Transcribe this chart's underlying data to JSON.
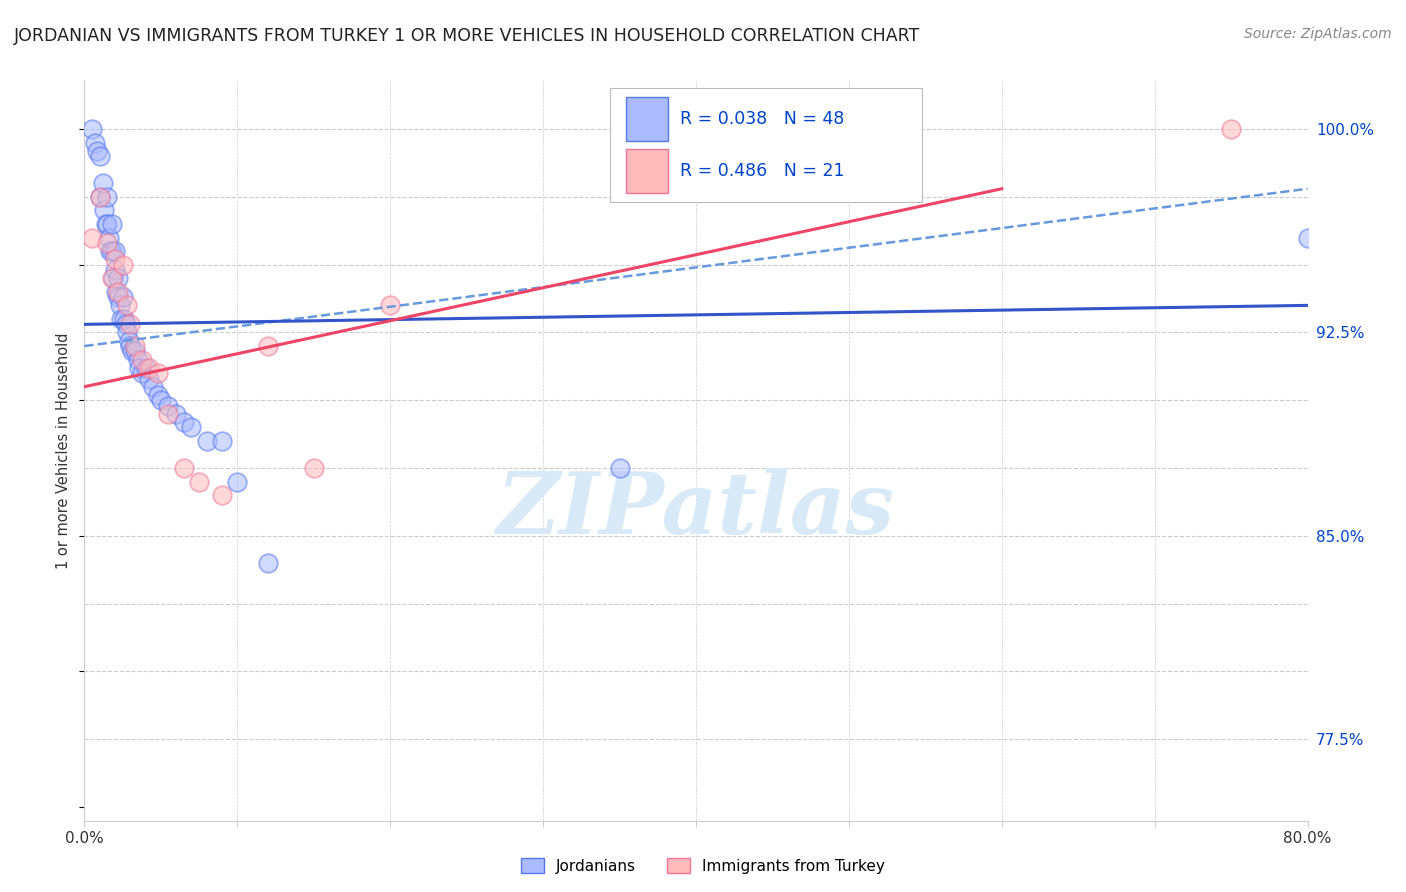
{
  "title": "JORDANIAN VS IMMIGRANTS FROM TURKEY 1 OR MORE VEHICLES IN HOUSEHOLD CORRELATION CHART",
  "source_text": "Source: ZipAtlas.com",
  "ylabel": "1 or more Vehicles in Household",
  "x_min": 0.0,
  "x_max": 0.8,
  "y_min": 0.745,
  "y_max": 1.018,
  "background_color": "#ffffff",
  "grid_color": "#cccccc",
  "jordanian_color_face": "#aabbff",
  "jordanian_color_edge": "#5577ee",
  "turkey_color_face": "#ffbbbb",
  "turkey_color_edge": "#ee7799",
  "blue_line_color": "#3355cc",
  "pink_line_color": "#ee4466",
  "dashed_line_color": "#6699dd",
  "label_color": "#0044cc",
  "right_tick_color": "#0044cc",
  "watermark_color": "#d8eaf8",
  "jordanian_R": "0.038",
  "jordanian_N": "48",
  "turkey_R": "0.486",
  "turkey_N": "21",
  "right_yticks": [
    0.775,
    0.825,
    0.85,
    0.875,
    0.9,
    0.925,
    0.95,
    0.975,
    1.0
  ],
  "right_yticklabels": [
    "77.5%",
    "",
    "85.0%",
    "",
    "",
    "92.5%",
    "",
    "",
    "100.0%"
  ],
  "jordanian_x": [
    0.005,
    0.007,
    0.008,
    0.01,
    0.01,
    0.012,
    0.013,
    0.014,
    0.015,
    0.015,
    0.016,
    0.017,
    0.018,
    0.018,
    0.019,
    0.02,
    0.02,
    0.021,
    0.022,
    0.022,
    0.023,
    0.024,
    0.025,
    0.026,
    0.027,
    0.028,
    0.029,
    0.03,
    0.031,
    0.033,
    0.035,
    0.036,
    0.038,
    0.04,
    0.042,
    0.045,
    0.048,
    0.05,
    0.055,
    0.06,
    0.065,
    0.07,
    0.08,
    0.09,
    0.1,
    0.12,
    0.35,
    0.8
  ],
  "jordanian_y": [
    1.0,
    0.995,
    0.992,
    0.99,
    0.975,
    0.98,
    0.97,
    0.965,
    0.975,
    0.965,
    0.96,
    0.955,
    0.965,
    0.955,
    0.945,
    0.955,
    0.948,
    0.94,
    0.945,
    0.938,
    0.935,
    0.93,
    0.938,
    0.93,
    0.928,
    0.925,
    0.922,
    0.92,
    0.918,
    0.918,
    0.915,
    0.912,
    0.91,
    0.912,
    0.908,
    0.905,
    0.902,
    0.9,
    0.898,
    0.895,
    0.892,
    0.89,
    0.885,
    0.885,
    0.87,
    0.84,
    0.875,
    0.96
  ],
  "turkey_x": [
    0.005,
    0.01,
    0.015,
    0.018,
    0.02,
    0.022,
    0.025,
    0.028,
    0.03,
    0.033,
    0.038,
    0.042,
    0.048,
    0.055,
    0.065,
    0.075,
    0.09,
    0.12,
    0.15,
    0.2,
    0.75
  ],
  "turkey_y": [
    0.96,
    0.975,
    0.958,
    0.945,
    0.952,
    0.94,
    0.95,
    0.935,
    0.928,
    0.92,
    0.915,
    0.912,
    0.91,
    0.895,
    0.875,
    0.87,
    0.865,
    0.92,
    0.875,
    0.935,
    1.0
  ],
  "blue_line_x": [
    0.0,
    0.8
  ],
  "blue_line_y": [
    0.928,
    0.935
  ],
  "dashed_line_x": [
    0.0,
    0.8
  ],
  "dashed_line_y": [
    0.92,
    0.978
  ],
  "pink_line_x": [
    0.0,
    0.6
  ],
  "pink_line_y": [
    0.905,
    0.978
  ]
}
